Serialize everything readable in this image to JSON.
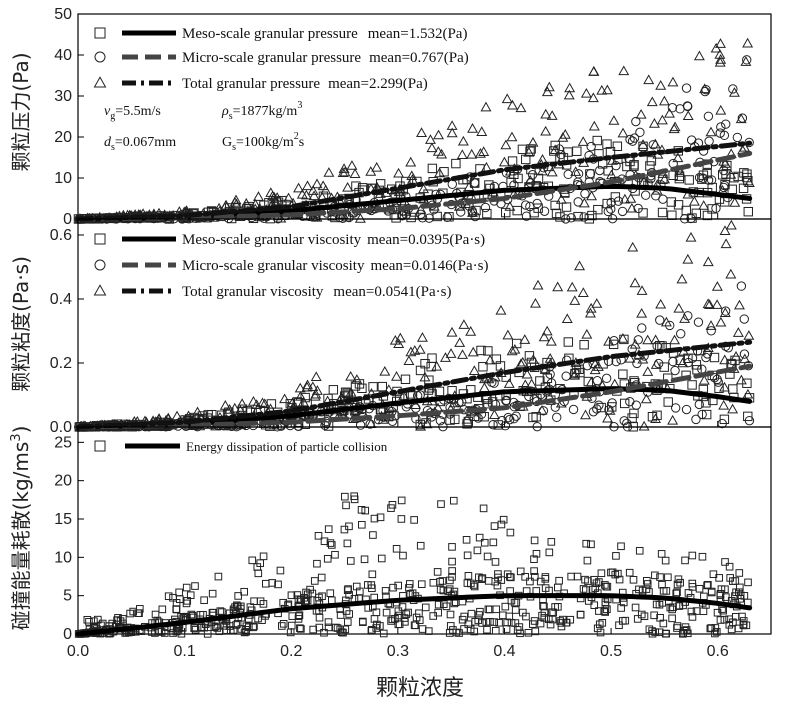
{
  "chart_data": {
    "type": "scatter",
    "xlabel": "颗粒浓度",
    "xlim": [
      0.0,
      0.65
    ],
    "x_ticks": [
      "0.0",
      "0.1",
      "0.2",
      "0.3",
      "0.4",
      "0.5",
      "0.6"
    ],
    "panels": [
      {
        "id": "pressure",
        "ylabel": "颗粒压力(Pa)",
        "ylim": [
          0,
          50
        ],
        "y_ticks": [
          "0",
          "10",
          "20",
          "30",
          "40",
          "50"
        ],
        "annotations": [
          {
            "lines": [
              "v",
              "g",
              "=5.5m/s"
            ],
            "text": "vg=5.5m/s"
          },
          {
            "text": "ρs=1877kg/m3"
          },
          {
            "text": "ds=0.067mm"
          },
          {
            "text": "Gs=100kg/m2s"
          }
        ],
        "annotation_text": {
          "vg": "=5.5m/s",
          "rho": "=1877kg/m",
          "rho_sup": "3",
          "ds": "=0.067mm",
          "Gs": "G",
          "Gs_val": "=100kg/m",
          "Gs_sup": "2",
          "Gs_tail": "s"
        },
        "series": [
          {
            "name": "Meso-scale granular pressure",
            "mean_label": "mean=1.532(Pa)",
            "marker": "square",
            "line": "solid",
            "fit": {
              "x": [
                0.0,
                0.1,
                0.2,
                0.3,
                0.4,
                0.5,
                0.55,
                0.6,
                0.63
              ],
              "y": [
                0,
                0.5,
                2,
                4.5,
                7,
                8,
                7.5,
                6,
                5
              ]
            }
          },
          {
            "name": "Micro-scale granular pressure",
            "mean_label": "mean=0.767(Pa)",
            "marker": "circle",
            "line": "dash",
            "fit": {
              "x": [
                0.0,
                0.1,
                0.2,
                0.3,
                0.4,
                0.5,
                0.63
              ],
              "y": [
                0,
                0.3,
                1,
                2.5,
                5,
                9,
                16
              ]
            }
          },
          {
            "name": "Total  granular pressure",
            "mean_label": "mean=2.299(Pa)",
            "marker": "triangle",
            "line": "dashdot",
            "fit": {
              "x": [
                0.0,
                0.1,
                0.2,
                0.3,
                0.4,
                0.5,
                0.63
              ],
              "y": [
                0,
                0.8,
                3,
                7.5,
                12,
                15,
                18.5
              ]
            }
          }
        ]
      },
      {
        "id": "viscosity",
        "ylabel": "颗粒粘度(Pa·s)",
        "ylim": [
          0,
          0.65
        ],
        "y_ticks": [
          "0.0",
          "0.2",
          "0.4",
          "0.6"
        ],
        "y_tick_values": [
          0,
          0.2,
          0.4,
          0.6
        ],
        "series": [
          {
            "name": "Meso-scale granular viscosity",
            "mean_label": "mean=0.0395(Pa·s)",
            "marker": "square",
            "line": "solid",
            "fit": {
              "x": [
                0.0,
                0.1,
                0.2,
                0.3,
                0.4,
                0.5,
                0.55,
                0.6,
                0.63
              ],
              "y": [
                0,
                0.01,
                0.035,
                0.075,
                0.11,
                0.12,
                0.115,
                0.095,
                0.08
              ]
            }
          },
          {
            "name": "Micro-scale granular viscosity",
            "mean_label": "mean=0.0146(Pa·s)",
            "marker": "circle",
            "line": "dash",
            "fit": {
              "x": [
                0.0,
                0.1,
                0.2,
                0.3,
                0.4,
                0.5,
                0.63
              ],
              "y": [
                0,
                0.005,
                0.015,
                0.035,
                0.06,
                0.11,
                0.19
              ]
            }
          },
          {
            "name": "Total granular viscosity",
            "mean_label": "mean=0.0541(Pa·s)",
            "marker": "triangle",
            "line": "dashdot",
            "fit": {
              "x": [
                0.0,
                0.1,
                0.2,
                0.3,
                0.4,
                0.5,
                0.63
              ],
              "y": [
                0,
                0.015,
                0.05,
                0.11,
                0.17,
                0.22,
                0.265
              ]
            }
          }
        ]
      },
      {
        "id": "dissipation",
        "ylabel": "碰撞能量耗散(kg/ms3)",
        "ylabel_main": "碰撞能量耗散(kg/ms",
        "ylabel_sup": "3",
        "ylabel_tail": ")",
        "ylim": [
          0,
          27
        ],
        "y_ticks": [
          "0",
          "5",
          "10",
          "15",
          "20",
          "25"
        ],
        "series": [
          {
            "name": "Energy dissipation of particle collision",
            "marker": "square",
            "line": "solid",
            "fit": {
              "x": [
                0.0,
                0.1,
                0.2,
                0.3,
                0.4,
                0.5,
                0.55,
                0.6,
                0.63
              ],
              "y": [
                0,
                1.5,
                3.3,
                4.4,
                5.0,
                5.0,
                4.7,
                4.0,
                3.4
              ]
            }
          }
        ]
      }
    ]
  }
}
